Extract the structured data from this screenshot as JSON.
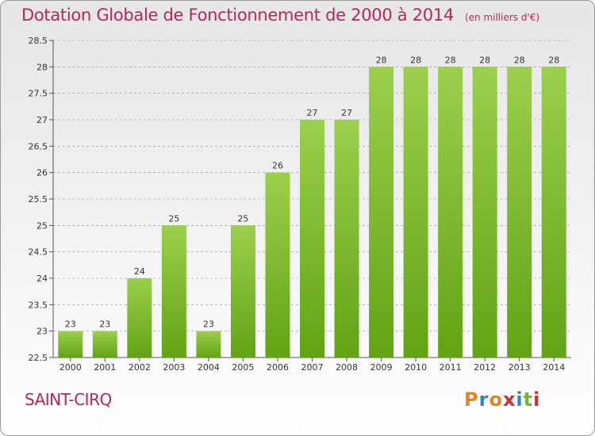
{
  "title": "Dotation Globale de Fonctionnement de 2000 à 2014",
  "unit": "(en milliers d'€)",
  "location": "SAINT-CIRQ",
  "logo": {
    "letters": [
      "P",
      "r",
      "o",
      "x",
      "i",
      "t",
      "i"
    ],
    "colors": [
      "#e8821e",
      "#2e86c8",
      "#e8821e",
      "#cc2f3a",
      "#2e86c8",
      "#7ab32e",
      "#cc2f3a"
    ]
  },
  "colors": {
    "bar_top": "#9ccf4c",
    "bar_bottom": "#62a315",
    "title": "#b5275a",
    "grid": "#666666"
  },
  "chart_data": {
    "type": "bar",
    "categories": [
      "2000",
      "2001",
      "2002",
      "2003",
      "2004",
      "2005",
      "2006",
      "2007",
      "2008",
      "2009",
      "2010",
      "2011",
      "2012",
      "2013",
      "2014"
    ],
    "values": [
      23,
      23,
      24,
      25,
      23,
      25,
      26,
      27,
      27,
      28,
      28,
      28,
      28,
      28,
      28
    ],
    "ylim": [
      22.5,
      28.5
    ],
    "yticks": [
      "22.5",
      "23",
      "23.5",
      "24",
      "24.5",
      "25",
      "25.5",
      "26",
      "26.5",
      "27",
      "27.5",
      "28",
      "28.5"
    ],
    "grid": "dashed horizontal",
    "legend": "none"
  }
}
